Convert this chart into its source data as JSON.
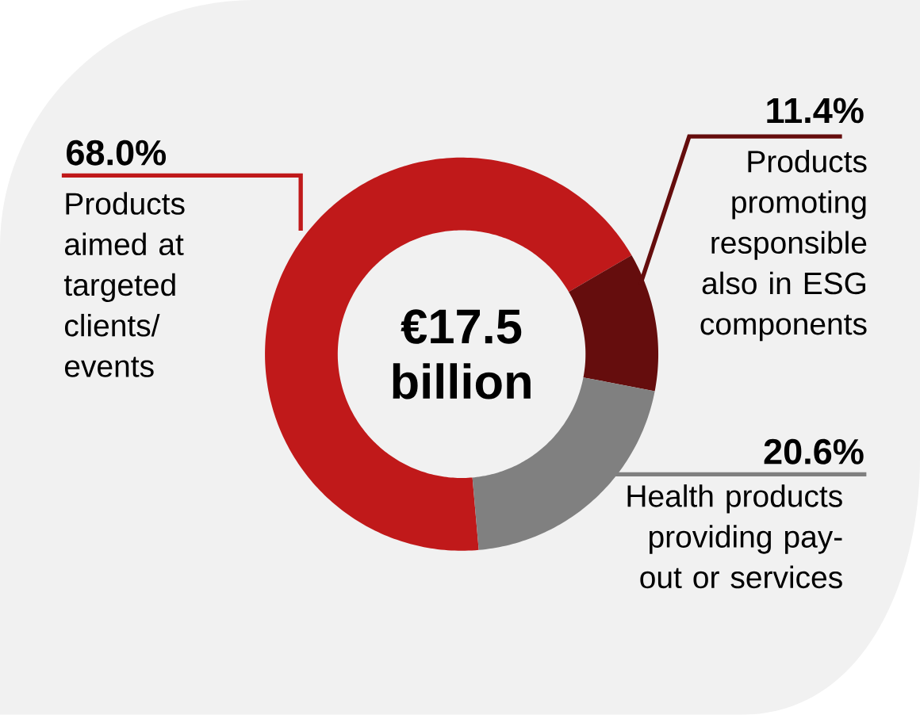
{
  "chart_data": {
    "type": "donut",
    "categories": [
      "Products aimed at targeted clients/ events",
      "Products promoting responsible also in ESG components",
      "Health products providing pay-out or services"
    ],
    "values": [
      68.0,
      11.4,
      20.6
    ],
    "colors": [
      "#c0191a",
      "#650d0d",
      "#808080"
    ],
    "value_labels": [
      "68.0%",
      "11.4%",
      "20.6%"
    ],
    "annotations": [
      "€17.5 billion"
    ]
  }
}
